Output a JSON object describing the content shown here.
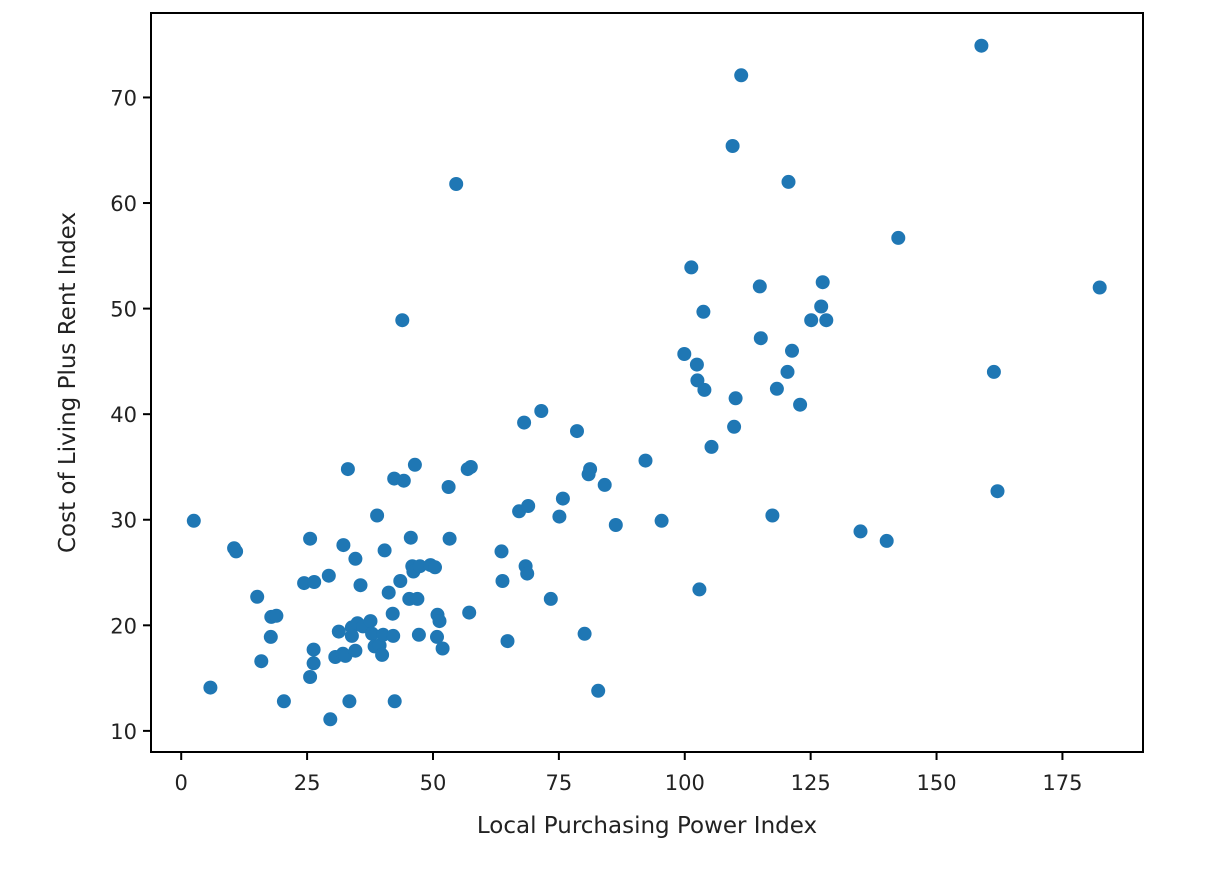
{
  "chart_data": {
    "type": "scatter",
    "title": "",
    "xlabel": "Local Purchasing Power Index",
    "ylabel": "Cost of Living Plus Rent Index",
    "xlim": [
      -6,
      191
    ],
    "ylim": [
      8,
      78
    ],
    "xticks": [
      0,
      25,
      50,
      75,
      100,
      125,
      150,
      175
    ],
    "yticks": [
      10,
      20,
      30,
      40,
      50,
      60,
      70
    ],
    "grid": false,
    "legend": "none",
    "marker_color": "#1f77b4",
    "points": [
      {
        "x": 2.5,
        "y": 29.9
      },
      {
        "x": 5.8,
        "y": 14.1
      },
      {
        "x": 10.5,
        "y": 27.3
      },
      {
        "x": 10.9,
        "y": 27.0
      },
      {
        "x": 15.1,
        "y": 22.7
      },
      {
        "x": 15.9,
        "y": 16.6
      },
      {
        "x": 17.8,
        "y": 18.9
      },
      {
        "x": 17.9,
        "y": 20.8
      },
      {
        "x": 18.9,
        "y": 20.9
      },
      {
        "x": 20.4,
        "y": 12.8
      },
      {
        "x": 24.4,
        "y": 24.0
      },
      {
        "x": 25.6,
        "y": 28.2
      },
      {
        "x": 25.6,
        "y": 15.1
      },
      {
        "x": 26.3,
        "y": 16.4
      },
      {
        "x": 26.3,
        "y": 17.7
      },
      {
        "x": 26.4,
        "y": 24.1
      },
      {
        "x": 29.3,
        "y": 24.7
      },
      {
        "x": 29.6,
        "y": 11.1
      },
      {
        "x": 30.6,
        "y": 17.0
      },
      {
        "x": 31.3,
        "y": 19.4
      },
      {
        "x": 32.1,
        "y": 17.3
      },
      {
        "x": 32.2,
        "y": 27.6
      },
      {
        "x": 32.6,
        "y": 17.1
      },
      {
        "x": 33.1,
        "y": 34.8
      },
      {
        "x": 33.4,
        "y": 12.8
      },
      {
        "x": 33.9,
        "y": 19.8
      },
      {
        "x": 33.9,
        "y": 19.0
      },
      {
        "x": 34.6,
        "y": 26.3
      },
      {
        "x": 34.6,
        "y": 17.6
      },
      {
        "x": 35.0,
        "y": 20.2
      },
      {
        "x": 35.6,
        "y": 23.8
      },
      {
        "x": 36.1,
        "y": 19.9
      },
      {
        "x": 37.6,
        "y": 20.4
      },
      {
        "x": 37.9,
        "y": 19.2
      },
      {
        "x": 38.4,
        "y": 18.0
      },
      {
        "x": 38.9,
        "y": 30.4
      },
      {
        "x": 39.4,
        "y": 18.1
      },
      {
        "x": 39.9,
        "y": 17.2
      },
      {
        "x": 40.1,
        "y": 19.1
      },
      {
        "x": 40.4,
        "y": 27.1
      },
      {
        "x": 41.2,
        "y": 23.1
      },
      {
        "x": 42.0,
        "y": 21.1
      },
      {
        "x": 42.1,
        "y": 19.0
      },
      {
        "x": 42.3,
        "y": 33.9
      },
      {
        "x": 42.4,
        "y": 12.8
      },
      {
        "x": 43.5,
        "y": 24.2
      },
      {
        "x": 43.9,
        "y": 48.9
      },
      {
        "x": 44.2,
        "y": 33.7
      },
      {
        "x": 45.3,
        "y": 22.5
      },
      {
        "x": 45.6,
        "y": 28.3
      },
      {
        "x": 45.9,
        "y": 25.6
      },
      {
        "x": 46.1,
        "y": 25.1
      },
      {
        "x": 46.4,
        "y": 35.2
      },
      {
        "x": 46.9,
        "y": 22.5
      },
      {
        "x": 47.2,
        "y": 19.1
      },
      {
        "x": 47.4,
        "y": 25.6
      },
      {
        "x": 49.5,
        "y": 25.7
      },
      {
        "x": 50.4,
        "y": 25.5
      },
      {
        "x": 50.8,
        "y": 18.9
      },
      {
        "x": 50.9,
        "y": 21.0
      },
      {
        "x": 51.3,
        "y": 20.4
      },
      {
        "x": 51.9,
        "y": 17.8
      },
      {
        "x": 53.1,
        "y": 33.1
      },
      {
        "x": 53.3,
        "y": 28.2
      },
      {
        "x": 54.6,
        "y": 61.8
      },
      {
        "x": 56.9,
        "y": 34.8
      },
      {
        "x": 57.2,
        "y": 21.2
      },
      {
        "x": 57.5,
        "y": 35.0
      },
      {
        "x": 63.6,
        "y": 27.0
      },
      {
        "x": 63.8,
        "y": 24.2
      },
      {
        "x": 64.8,
        "y": 18.5
      },
      {
        "x": 67.1,
        "y": 30.8
      },
      {
        "x": 68.1,
        "y": 39.2
      },
      {
        "x": 68.4,
        "y": 25.6
      },
      {
        "x": 68.7,
        "y": 24.9
      },
      {
        "x": 68.9,
        "y": 31.3
      },
      {
        "x": 71.5,
        "y": 40.3
      },
      {
        "x": 73.4,
        "y": 22.5
      },
      {
        "x": 75.1,
        "y": 30.3
      },
      {
        "x": 75.8,
        "y": 32.0
      },
      {
        "x": 78.6,
        "y": 38.4
      },
      {
        "x": 80.1,
        "y": 19.2
      },
      {
        "x": 80.9,
        "y": 34.3
      },
      {
        "x": 81.2,
        "y": 34.8
      },
      {
        "x": 82.8,
        "y": 13.8
      },
      {
        "x": 84.1,
        "y": 33.3
      },
      {
        "x": 86.3,
        "y": 29.5
      },
      {
        "x": 92.2,
        "y": 35.6
      },
      {
        "x": 95.4,
        "y": 29.9
      },
      {
        "x": 99.9,
        "y": 45.7
      },
      {
        "x": 101.3,
        "y": 53.9
      },
      {
        "x": 102.4,
        "y": 44.7
      },
      {
        "x": 102.5,
        "y": 43.2
      },
      {
        "x": 102.9,
        "y": 23.4
      },
      {
        "x": 103.7,
        "y": 49.7
      },
      {
        "x": 103.9,
        "y": 42.3
      },
      {
        "x": 105.3,
        "y": 36.9
      },
      {
        "x": 109.5,
        "y": 65.4
      },
      {
        "x": 109.8,
        "y": 38.8
      },
      {
        "x": 110.1,
        "y": 41.5
      },
      {
        "x": 111.2,
        "y": 72.1
      },
      {
        "x": 114.9,
        "y": 52.1
      },
      {
        "x": 115.1,
        "y": 47.2
      },
      {
        "x": 117.4,
        "y": 30.4
      },
      {
        "x": 118.3,
        "y": 42.4
      },
      {
        "x": 120.4,
        "y": 44.0
      },
      {
        "x": 120.6,
        "y": 62.0
      },
      {
        "x": 121.3,
        "y": 46.0
      },
      {
        "x": 122.9,
        "y": 40.9
      },
      {
        "x": 125.1,
        "y": 48.9
      },
      {
        "x": 127.1,
        "y": 50.2
      },
      {
        "x": 127.4,
        "y": 52.5
      },
      {
        "x": 128.1,
        "y": 48.9
      },
      {
        "x": 134.9,
        "y": 28.9
      },
      {
        "x": 140.1,
        "y": 28.0
      },
      {
        "x": 142.4,
        "y": 56.7
      },
      {
        "x": 158.9,
        "y": 74.9
      },
      {
        "x": 161.4,
        "y": 44.0
      },
      {
        "x": 162.1,
        "y": 32.7
      },
      {
        "x": 182.4,
        "y": 52.0
      }
    ]
  }
}
